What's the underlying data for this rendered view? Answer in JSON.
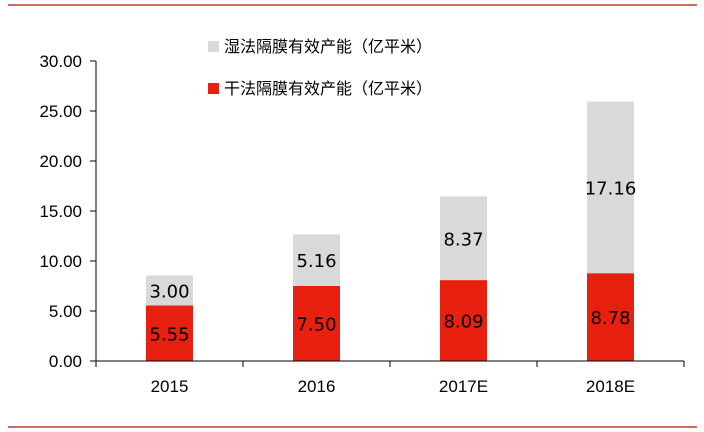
{
  "chart_data": {
    "type": "bar",
    "stacked": true,
    "categories": [
      "2015",
      "2016",
      "2017E",
      "2018E"
    ],
    "series": [
      {
        "name": "干法隔膜有效产能（亿平米）",
        "values": [
          5.55,
          7.5,
          8.09,
          8.78
        ],
        "color": "#e8200f"
      },
      {
        "name": "湿法隔膜有效产能（亿平米）",
        "values": [
          3.0,
          5.16,
          8.37,
          17.16
        ],
        "color": "#d9d9d9"
      }
    ],
    "value_labels": [
      [
        "5.55",
        "7.50",
        "8.09",
        "8.78"
      ],
      [
        "3.00",
        "5.16",
        "8.37",
        "17.16"
      ]
    ],
    "yticks": [
      "0.00",
      "5.00",
      "10.00",
      "15.00",
      "20.00",
      "25.00",
      "30.00"
    ],
    "ylim": [
      0,
      30
    ],
    "legend_position": "top-center",
    "grid": false,
    "rule_color": "#c0392b"
  }
}
